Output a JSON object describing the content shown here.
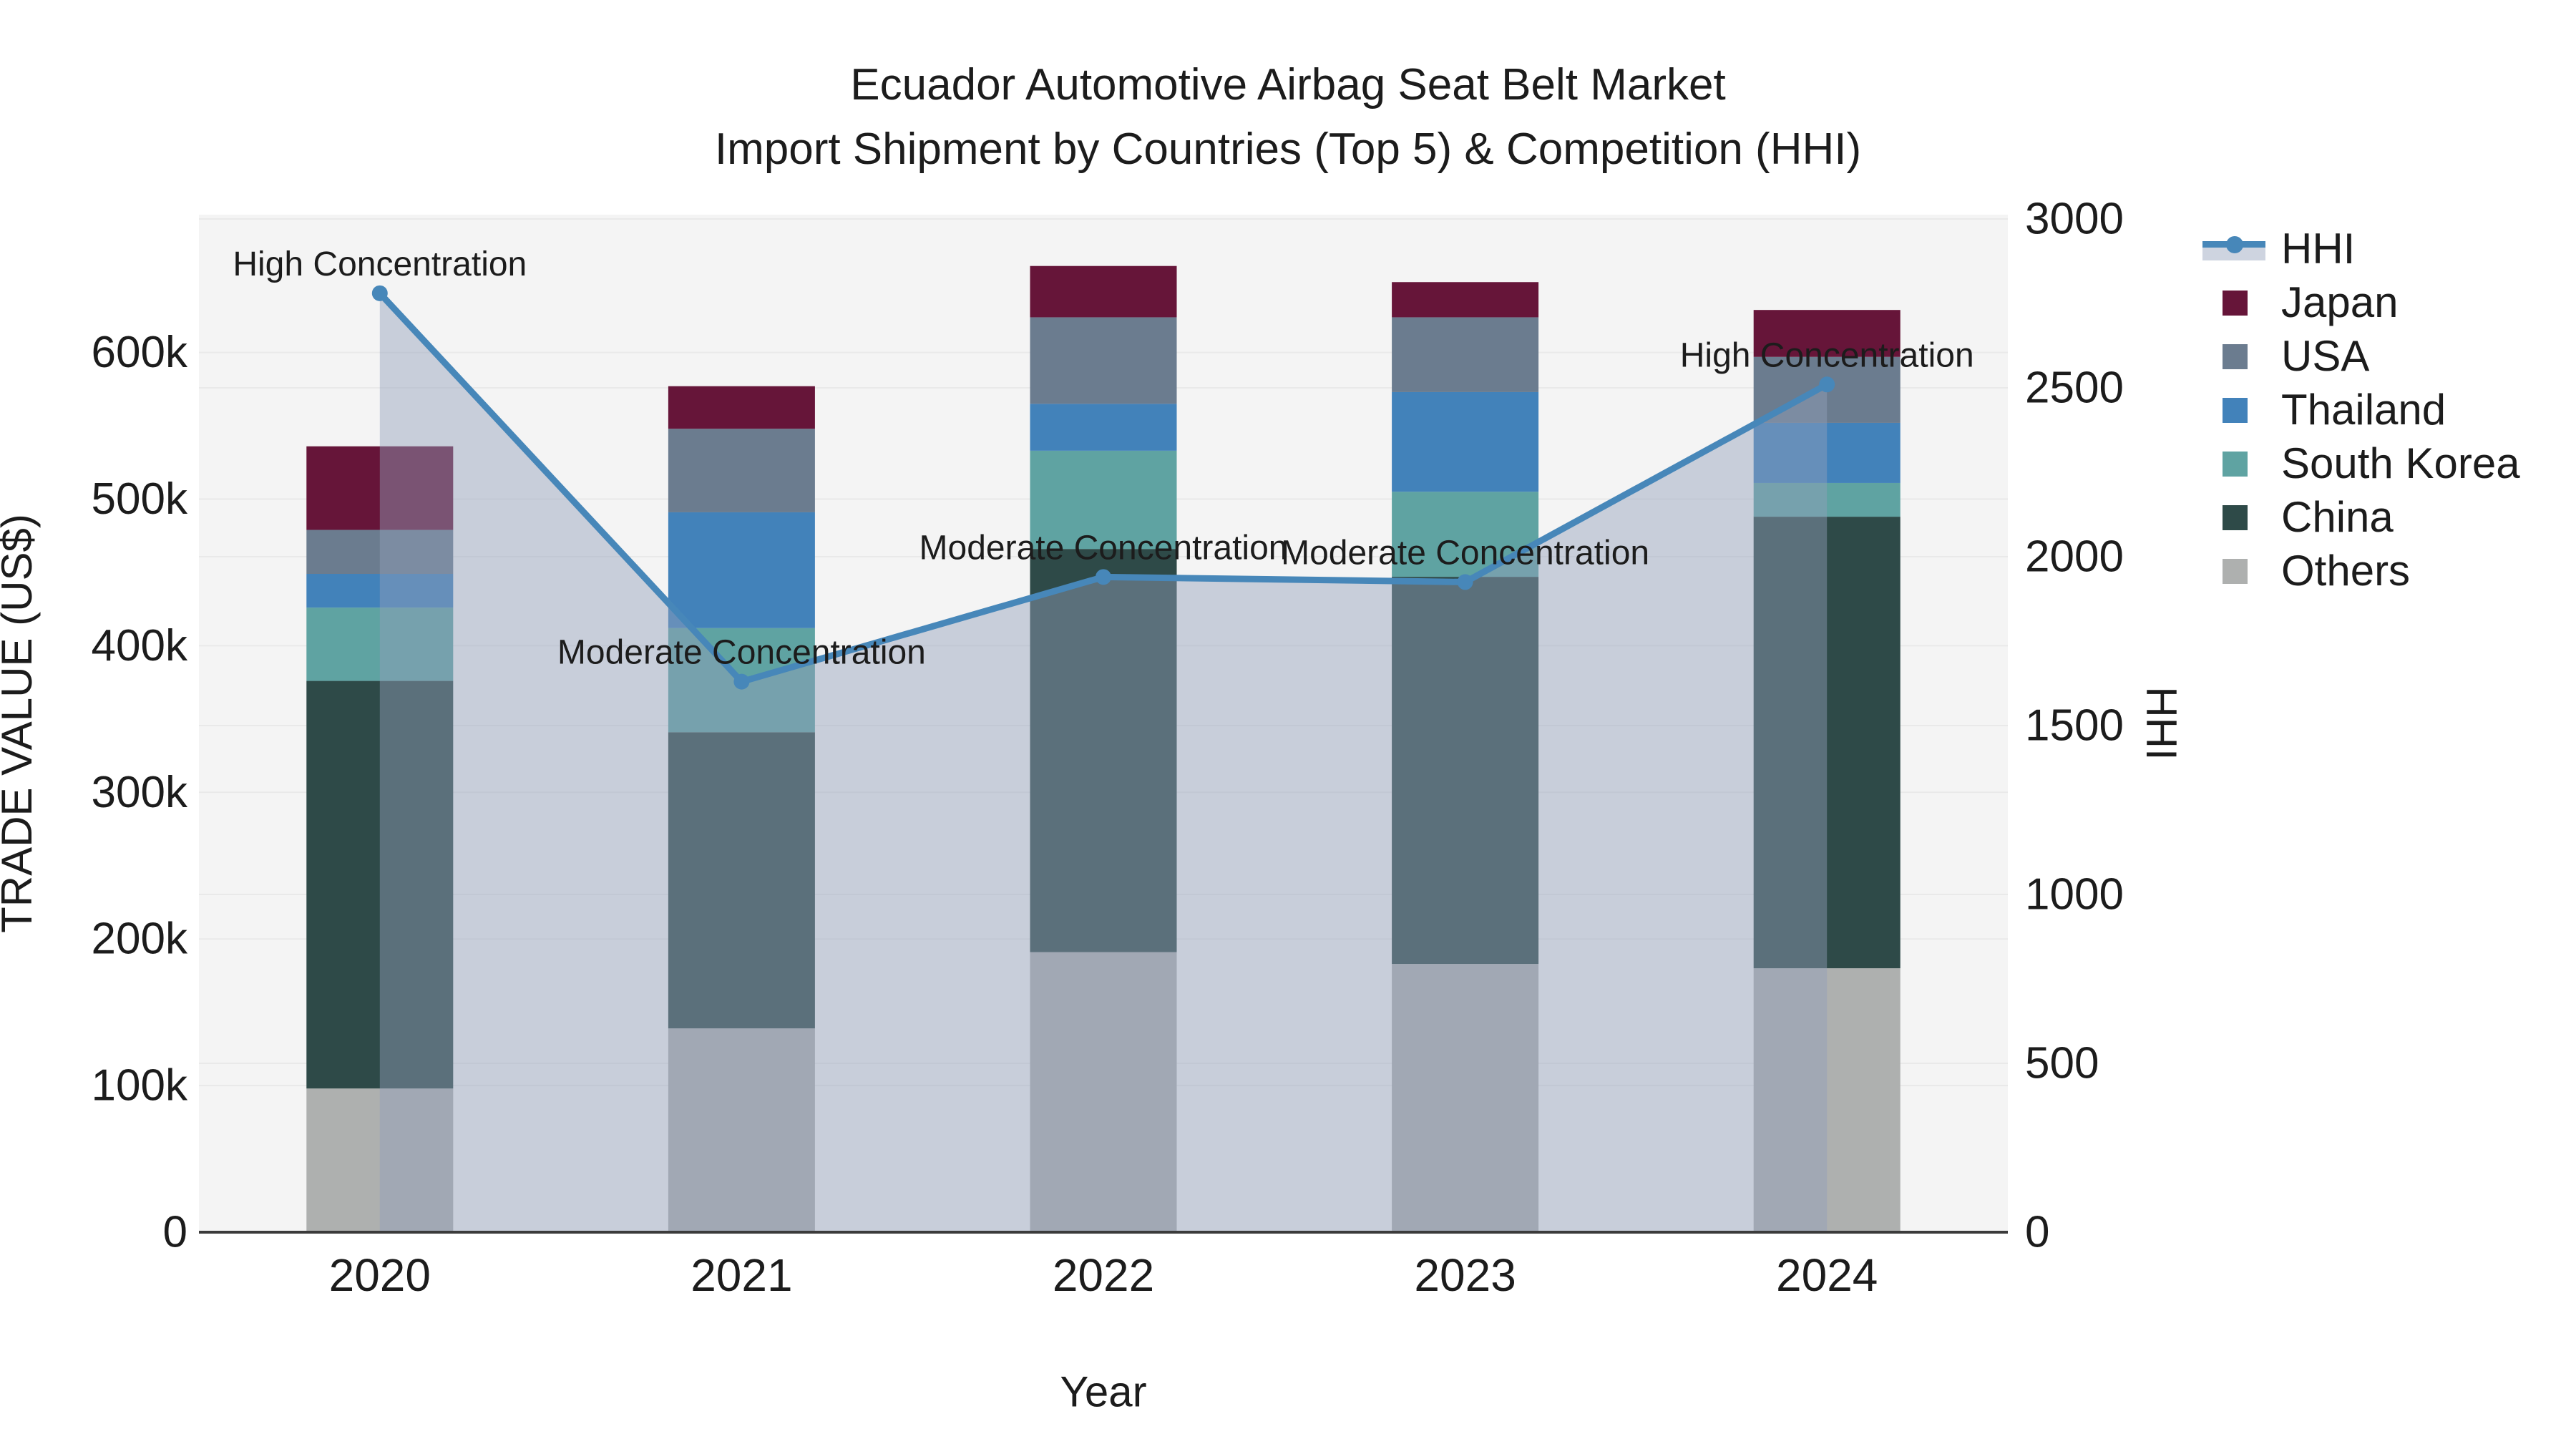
{
  "title": {
    "line1": "Ecuador Automotive Airbag Seat Belt Market",
    "line2": "Import Shipment by Countries (Top 5) & Competition (HHI)"
  },
  "chart_data": {
    "type": "bar+line",
    "title": "Ecuador Automotive Airbag Seat Belt Market Import Shipment by Countries (Top 5) & Competition (HHI)",
    "categories": [
      "2020",
      "2021",
      "2022",
      "2023",
      "2024"
    ],
    "stack_order_bottom_to_top": [
      "Others",
      "China",
      "South Korea",
      "Thailand",
      "USA",
      "Japan"
    ],
    "series": [
      {
        "name": "Japan",
        "color": "#661539",
        "values": [
          57000,
          29000,
          35000,
          24000,
          32000
        ]
      },
      {
        "name": "USA",
        "color": "#6b7c8f",
        "values": [
          30000,
          57000,
          59000,
          51000,
          45000
        ]
      },
      {
        "name": "Thailand",
        "color": "#4282ba",
        "values": [
          23000,
          79000,
          32000,
          68000,
          41000
        ]
      },
      {
        "name": "South Korea",
        "color": "#5fa3a2",
        "values": [
          50000,
          71000,
          67000,
          58000,
          23000
        ]
      },
      {
        "name": "China",
        "color": "#2e4a48",
        "values": [
          278000,
          202000,
          275000,
          264000,
          308000
        ]
      },
      {
        "name": "Others",
        "color": "#aeb0af",
        "values": [
          98000,
          139000,
          191000,
          183000,
          180000
        ]
      }
    ],
    "bar_totals": [
      536000,
      577000,
      659000,
      648000,
      629000
    ],
    "line_series": {
      "name": "HHI",
      "color": "#4787b9",
      "area_fill": "rgba(146,160,187,0.45)",
      "values": [
        2780,
        1630,
        1940,
        1925,
        2510
      ]
    },
    "annotations": [
      {
        "year": "2020",
        "text": "High Concentration"
      },
      {
        "year": "2021",
        "text": "Moderate Concentration"
      },
      {
        "year": "2022",
        "text": "Moderate Concentration"
      },
      {
        "year": "2023",
        "text": "Moderate Concentration"
      },
      {
        "year": "2024",
        "text": "High Concentration"
      }
    ],
    "left_axis": {
      "title": "TRADE VALUE (US$)",
      "tick_labels": [
        "0",
        "100k",
        "200k",
        "300k",
        "400k",
        "500k",
        "600k"
      ],
      "tick_values": [
        0,
        100000,
        200000,
        300000,
        400000,
        500000,
        600000
      ],
      "range": [
        0,
        694000
      ]
    },
    "right_axis": {
      "title": "HHI",
      "tick_labels": [
        "0",
        "500",
        "1000",
        "1500",
        "2000",
        "2500",
        "3000"
      ],
      "tick_values": [
        0,
        500,
        1000,
        1500,
        2000,
        2500,
        3000
      ],
      "range": [
        0,
        3000
      ]
    },
    "x_axis": {
      "title": "Year"
    },
    "grid": true,
    "legend_position": "right",
    "plot_background": "#f4f4f4",
    "gridline_color": "#e9e9e9",
    "axis_line_color": "#3b3b3b",
    "text_color": "#1c1c1c"
  },
  "legend": {
    "items": [
      {
        "label": "HHI",
        "type": "line",
        "color": "#4787b9"
      },
      {
        "label": "Japan",
        "type": "swatch",
        "color": "#661539"
      },
      {
        "label": "USA",
        "type": "swatch",
        "color": "#6b7c8f"
      },
      {
        "label": "Thailand",
        "type": "swatch",
        "color": "#4282ba"
      },
      {
        "label": "South Korea",
        "type": "swatch",
        "color": "#5fa3a2"
      },
      {
        "label": "China",
        "type": "swatch",
        "color": "#2e4a48"
      },
      {
        "label": "Others",
        "type": "swatch",
        "color": "#aeb0af"
      }
    ]
  }
}
